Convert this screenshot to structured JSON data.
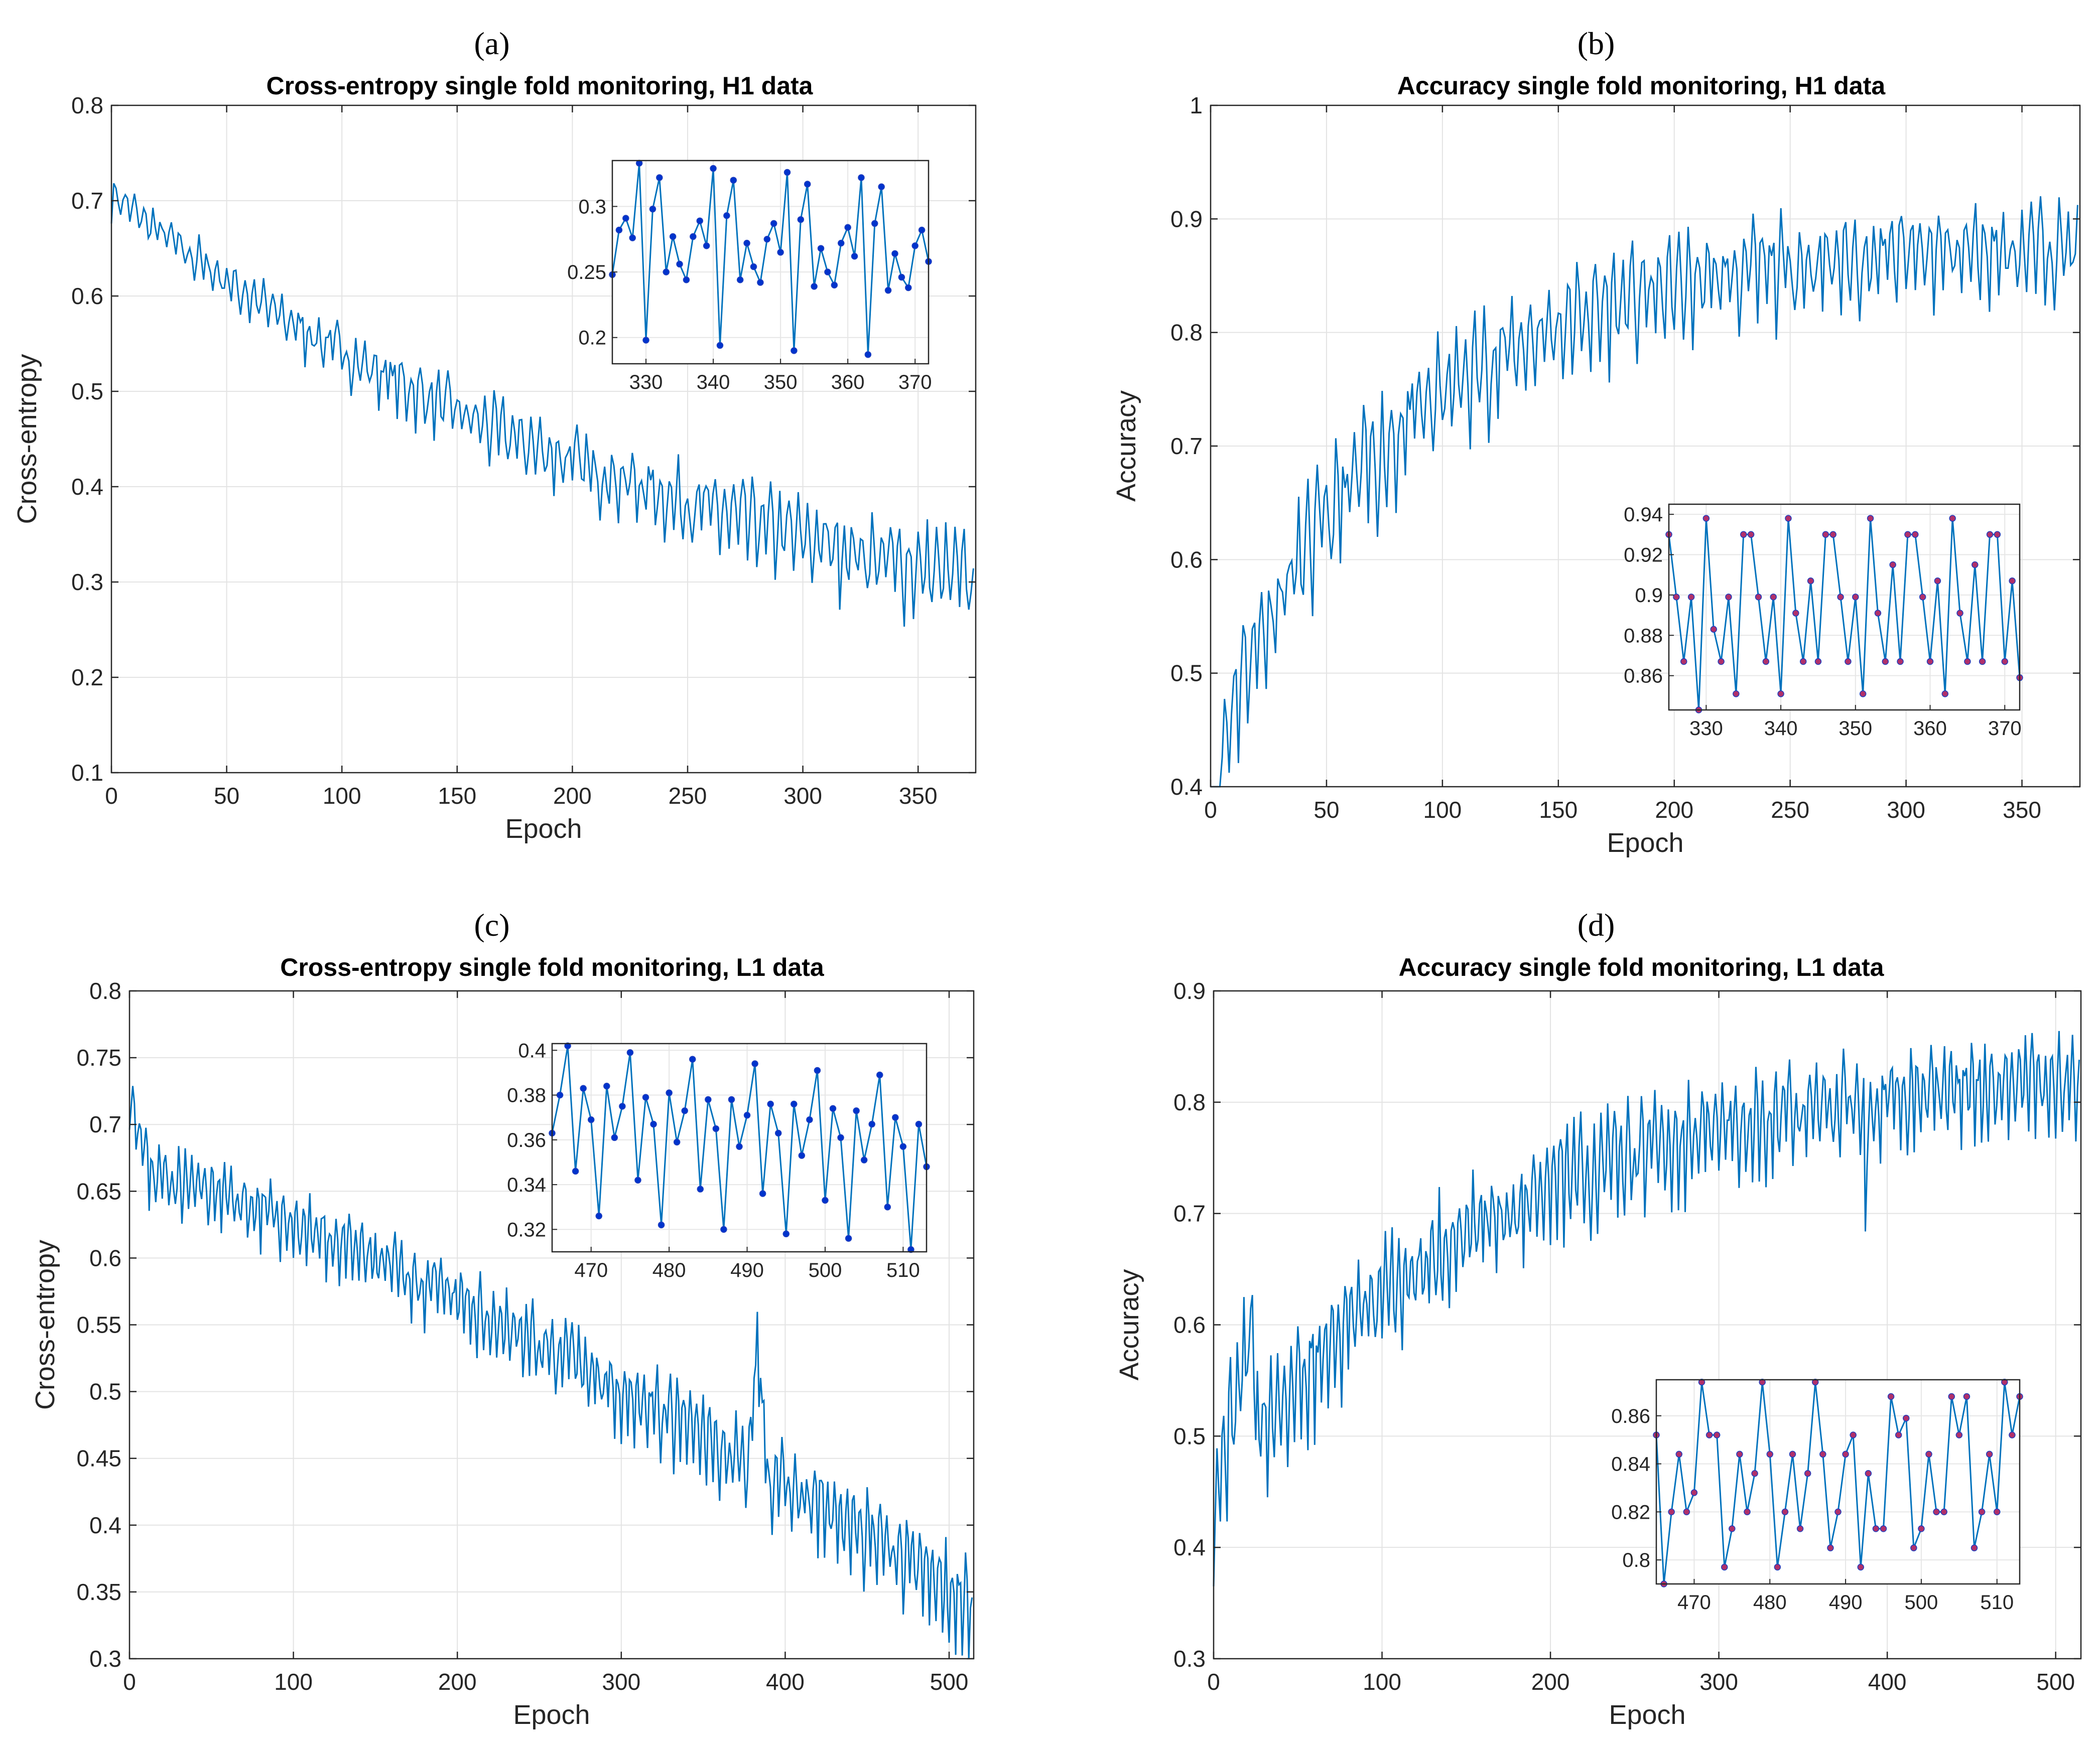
{
  "chart_data": [
    {
      "type": "line",
      "panel": "a",
      "panel_label": "(a)",
      "title": "Cross-entropy single fold monitoring, H1 data",
      "xlabel": "Epoch",
      "ylabel": "Cross-entropy",
      "xlim": [
        0,
        375
      ],
      "ylim": [
        0.1,
        0.8
      ],
      "xticks": [
        0,
        50,
        100,
        150,
        200,
        250,
        300,
        350
      ],
      "yticks": [
        0.1,
        0.2,
        0.3,
        0.4,
        0.5,
        0.6,
        0.7,
        0.8
      ],
      "grid": true,
      "line_color": "#0072BD",
      "series_model": {
        "n": 375,
        "start": 0.71,
        "end": 0.265,
        "decay": 0.0042,
        "noise_start": 0.02,
        "noise_end": 0.045,
        "seed": 7
      },
      "inset": {
        "placement": "top-right",
        "xlim": [
          325,
          372
        ],
        "ylim": [
          0.18,
          0.335
        ],
        "xticks": [
          330,
          340,
          350,
          360,
          370
        ],
        "yticks": [
          0.2,
          0.25,
          0.3
        ],
        "marker_color": "#0033CC",
        "x": [
          325,
          326,
          327,
          328,
          329,
          330,
          331,
          332,
          333,
          334,
          335,
          336,
          337,
          338,
          339,
          340,
          341,
          342,
          343,
          344,
          345,
          346,
          347,
          348,
          349,
          350,
          351,
          352,
          353,
          354,
          355,
          356,
          357,
          358,
          359,
          360,
          361,
          362,
          363,
          364,
          365,
          366,
          367,
          368,
          369,
          370,
          371,
          372
        ],
        "y": [
          0.248,
          0.282,
          0.291,
          0.276,
          0.333,
          0.198,
          0.298,
          0.322,
          0.25,
          0.277,
          0.256,
          0.244,
          0.277,
          0.289,
          0.27,
          0.329,
          0.194,
          0.293,
          0.32,
          0.244,
          0.272,
          0.254,
          0.242,
          0.275,
          0.287,
          0.265,
          0.326,
          0.19,
          0.29,
          0.317,
          0.239,
          0.268,
          0.25,
          0.24,
          0.272,
          0.284,
          0.262,
          0.322,
          0.187,
          0.287,
          0.315,
          0.236,
          0.264,
          0.246,
          0.238,
          0.27,
          0.282,
          0.258
        ]
      }
    },
    {
      "type": "line",
      "panel": "b",
      "panel_label": "(b)",
      "title": "Accuracy single fold monitoring, H1 data",
      "xlabel": "Epoch",
      "ylabel": "Accuracy",
      "xlim": [
        0,
        375
      ],
      "ylim": [
        0.4,
        1.0
      ],
      "xticks": [
        0,
        50,
        100,
        150,
        200,
        250,
        300,
        350
      ],
      "yticks": [
        0.4,
        0.5,
        0.6,
        0.7,
        0.8,
        0.9,
        1
      ],
      "grid": true,
      "line_color": "#0072BD",
      "series_model": {
        "n": 375,
        "start": 0.44,
        "plateau": 0.885,
        "rise": 0.012,
        "noise_start": 0.05,
        "noise_end": 0.035,
        "seed": 11
      },
      "inset": {
        "placement": "bottom-right",
        "xlim": [
          325,
          372
        ],
        "ylim": [
          0.843,
          0.945
        ],
        "xticks": [
          330,
          340,
          350,
          360,
          370
        ],
        "yticks": [
          0.86,
          0.88,
          0.9,
          0.92,
          0.94
        ],
        "marker_color": "#B0306A",
        "x": [
          325,
          326,
          327,
          328,
          329,
          330,
          331,
          332,
          333,
          334,
          335,
          336,
          337,
          338,
          339,
          340,
          341,
          342,
          343,
          344,
          345,
          346,
          347,
          348,
          349,
          350,
          351,
          352,
          353,
          354,
          355,
          356,
          357,
          358,
          359,
          360,
          361,
          362,
          363,
          364,
          365,
          366,
          367,
          368,
          369,
          370,
          371,
          372
        ],
        "y": [
          0.93,
          0.899,
          0.867,
          0.899,
          0.843,
          0.938,
          0.883,
          0.867,
          0.899,
          0.851,
          0.93,
          0.93,
          0.899,
          0.867,
          0.899,
          0.851,
          0.938,
          0.891,
          0.867,
          0.907,
          0.867,
          0.93,
          0.93,
          0.899,
          0.867,
          0.899,
          0.851,
          0.938,
          0.891,
          0.867,
          0.915,
          0.867,
          0.93,
          0.93,
          0.899,
          0.867,
          0.907,
          0.851,
          0.938,
          0.891,
          0.867,
          0.915,
          0.867,
          0.93,
          0.93,
          0.867,
          0.907,
          0.859
        ]
      }
    },
    {
      "type": "line",
      "panel": "c",
      "panel_label": "(c)",
      "title": "Cross-entropy single fold monitoring, L1 data",
      "xlabel": "Epoch",
      "ylabel": "Cross-entropy",
      "xlim": [
        0,
        515
      ],
      "ylim": [
        0.3,
        0.8
      ],
      "xticks": [
        0,
        100,
        200,
        300,
        400,
        500
      ],
      "yticks": [
        0.3,
        0.35,
        0.4,
        0.45,
        0.5,
        0.55,
        0.6,
        0.65,
        0.7,
        0.75,
        0.8
      ],
      "grid": true,
      "line_color": "#0072BD",
      "series_model": {
        "n": 515,
        "start": 0.67,
        "end": 0.345,
        "noise_start": 0.02,
        "noise_end": 0.03,
        "spike_at": 383,
        "seed": 23
      },
      "inset": {
        "placement": "top-right",
        "xlim": [
          465,
          513
        ],
        "ylim": [
          0.31,
          0.403
        ],
        "xticks": [
          470,
          480,
          490,
          500,
          510
        ],
        "yticks": [
          0.32,
          0.34,
          0.36,
          0.38,
          0.4
        ],
        "marker_color": "#0033CC",
        "x": [
          465,
          466,
          467,
          468,
          469,
          470,
          471,
          472,
          473,
          474,
          475,
          476,
          477,
          478,
          479,
          480,
          481,
          482,
          483,
          484,
          485,
          486,
          487,
          488,
          489,
          490,
          491,
          492,
          493,
          494,
          495,
          496,
          497,
          498,
          499,
          500,
          501,
          502,
          503,
          504,
          505,
          506,
          507,
          508,
          509,
          510,
          511,
          512,
          513
        ],
        "y": [
          0.363,
          0.38,
          0.402,
          0.346,
          0.383,
          0.369,
          0.326,
          0.384,
          0.361,
          0.375,
          0.399,
          0.342,
          0.379,
          0.367,
          0.322,
          0.381,
          0.359,
          0.373,
          0.396,
          0.338,
          0.378,
          0.365,
          0.32,
          0.378,
          0.357,
          0.371,
          0.394,
          0.336,
          0.376,
          0.363,
          0.318,
          0.376,
          0.353,
          0.369,
          0.391,
          0.333,
          0.374,
          0.361,
          0.316,
          0.373,
          0.351,
          0.367,
          0.389,
          0.33,
          0.37,
          0.357,
          0.311,
          0.367,
          0.348
        ]
      }
    },
    {
      "type": "line",
      "panel": "d",
      "panel_label": "(d)",
      "title": "Accuracy single fold monitoring, L1 data",
      "xlabel": "Epoch",
      "ylabel": "Accuracy",
      "xlim": [
        0,
        515
      ],
      "ylim": [
        0.3,
        0.9
      ],
      "xticks": [
        0,
        100,
        200,
        300,
        400,
        500
      ],
      "yticks": [
        0.3,
        0.4,
        0.5,
        0.6,
        0.7,
        0.8,
        0.9
      ],
      "grid": true,
      "line_color": "#0072BD",
      "series_model": {
        "n": 515,
        "start": 0.45,
        "end": 0.84,
        "noise_start": 0.05,
        "noise_end": 0.035,
        "dip_at": 387,
        "seed": 31
      },
      "inset": {
        "placement": "bottom-right",
        "xlim": [
          465,
          513
        ],
        "ylim": [
          0.79,
          0.875
        ],
        "xticks": [
          470,
          480,
          490,
          500,
          510
        ],
        "yticks": [
          0.8,
          0.82,
          0.84,
          0.86
        ],
        "marker_color": "#B0306A",
        "x": [
          465,
          466,
          467,
          468,
          469,
          470,
          471,
          472,
          473,
          474,
          475,
          476,
          477,
          478,
          479,
          480,
          481,
          482,
          483,
          484,
          485,
          486,
          487,
          488,
          489,
          490,
          491,
          492,
          493,
          494,
          495,
          496,
          497,
          498,
          499,
          500,
          501,
          502,
          503,
          504,
          505,
          506,
          507,
          508,
          509,
          510,
          511,
          512,
          513
        ],
        "y": [
          0.852,
          0.79,
          0.82,
          0.844,
          0.82,
          0.828,
          0.874,
          0.852,
          0.852,
          0.797,
          0.813,
          0.844,
          0.82,
          0.836,
          0.874,
          0.844,
          0.797,
          0.82,
          0.844,
          0.813,
          0.836,
          0.874,
          0.844,
          0.805,
          0.82,
          0.844,
          0.852,
          0.797,
          0.836,
          0.813,
          0.813,
          0.868,
          0.852,
          0.859,
          0.805,
          0.813,
          0.844,
          0.82,
          0.82,
          0.868,
          0.852,
          0.868,
          0.805,
          0.82,
          0.844,
          0.82,
          0.874,
          0.852,
          0.868
        ]
      }
    }
  ]
}
